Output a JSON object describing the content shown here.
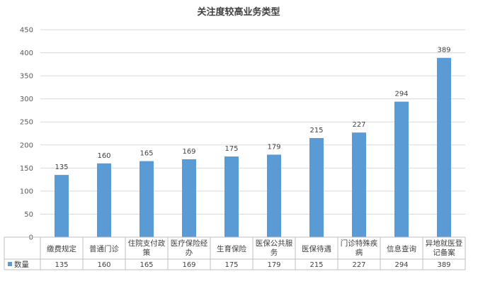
{
  "chart_data": {
    "type": "bar",
    "title": "关注度较高业务类型",
    "categories": [
      [
        "缴费规定"
      ],
      [
        "普通门诊"
      ],
      [
        "住院支付政",
        "策"
      ],
      [
        "医疗保险经",
        "办"
      ],
      [
        "生育保险"
      ],
      [
        "医保公共服",
        "务"
      ],
      [
        "医保待遇"
      ],
      [
        "门诊特殊疾",
        "病"
      ],
      [
        "信息查询"
      ],
      [
        "异地就医登",
        "记备案"
      ]
    ],
    "series": [
      {
        "name": "数量",
        "values": [
          135,
          160,
          165,
          169,
          175,
          179,
          215,
          227,
          294,
          389
        ]
      }
    ],
    "ylim": [
      0,
      450
    ],
    "yticks": [
      0,
      50,
      100,
      150,
      200,
      250,
      300,
      350,
      400,
      450
    ],
    "grid": true,
    "legend": "data-table-left",
    "colors": {
      "bar": "#5b9bd5",
      "grid": "#d9d9d9",
      "axis": "#bfbfbf"
    }
  }
}
